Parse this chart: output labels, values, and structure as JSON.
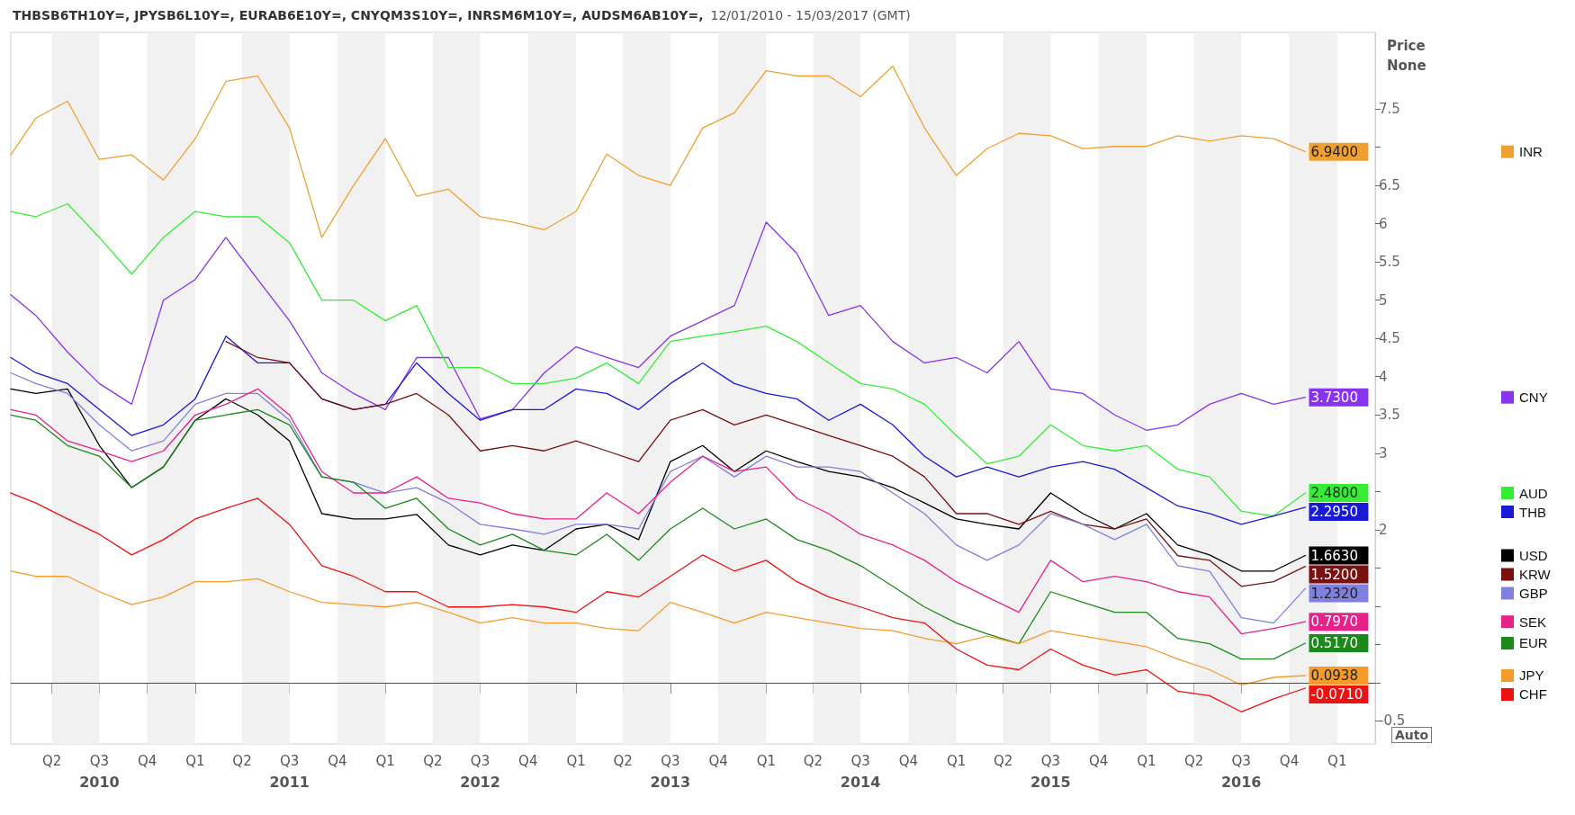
{
  "chart_data": {
    "type": "line",
    "title": "THBSB6TH10Y=, JPYSB6L10Y=, EURAB6E10Y=, CNYQM3S10Y=, INRSM6M10Y=, AUDSM6AB10Y=,",
    "subtitle": "12/01/2010 - 15/03/2017 (GMT)",
    "ylabel": "Price\nNone",
    "annotations": [
      "Auto"
    ],
    "x": [
      "2010-01-12",
      "2010-03",
      "2010-05",
      "2010-07",
      "2010-09",
      "2010-11",
      "2011-01",
      "2011-03",
      "2011-05",
      "2011-07",
      "2011-09",
      "2011-11",
      "2012-01",
      "2012-03",
      "2012-05",
      "2012-07",
      "2012-09",
      "2012-11",
      "2013-01",
      "2013-03",
      "2013-05",
      "2013-07",
      "2013-09",
      "2013-11",
      "2014-01",
      "2014-03",
      "2014-05",
      "2014-07",
      "2014-09",
      "2014-11",
      "2015-01",
      "2015-03",
      "2015-05",
      "2015-07",
      "2015-09",
      "2015-11",
      "2016-01",
      "2016-03",
      "2016-05",
      "2016-07",
      "2016-09",
      "2016-11"
    ],
    "series": [
      {
        "name": "INR",
        "color": "#f0a030",
        "values": [
          6.9,
          7.38,
          7.6,
          6.84,
          6.9,
          6.57,
          7.11,
          7.86,
          7.93,
          7.25,
          5.82,
          6.5,
          7.11,
          6.36,
          6.45,
          6.09,
          6.02,
          5.92,
          6.16,
          6.91,
          6.63,
          6.5,
          7.25,
          7.45,
          8.0,
          7.93,
          7.93,
          7.66,
          8.06,
          7.25,
          6.63,
          6.98,
          7.18,
          7.15,
          6.98,
          7.01,
          7.01,
          7.15,
          7.08,
          7.15,
          7.11,
          6.94
        ],
        "value_labels": [
          null,
          null,
          null,
          null,
          null,
          null,
          null,
          null,
          null,
          null,
          null,
          null,
          null,
          null,
          null,
          null,
          null,
          null,
          null,
          null,
          null,
          null,
          null,
          null,
          null,
          null,
          null,
          null,
          null,
          null,
          null,
          null,
          null,
          null,
          null,
          null,
          null,
          null,
          null,
          null,
          null,
          "6.9400"
        ]
      },
      {
        "name": "CNY",
        "color": "#8833ee",
        "values": [
          5.07,
          4.8,
          4.32,
          3.91,
          3.64,
          5.0,
          5.27,
          5.82,
          5.27,
          4.73,
          4.05,
          3.78,
          3.57,
          4.25,
          4.25,
          3.45,
          3.57,
          4.05,
          4.39,
          4.25,
          4.12,
          4.53,
          4.73,
          4.93,
          6.02,
          5.61,
          4.8,
          4.93,
          4.46,
          4.18,
          4.25,
          4.05,
          4.46,
          3.84,
          3.78,
          3.5,
          3.3,
          3.37,
          3.64,
          3.78,
          3.64,
          3.73
        ],
        "value_labels": [
          null,
          null,
          null,
          null,
          null,
          null,
          null,
          null,
          null,
          null,
          null,
          null,
          null,
          null,
          null,
          null,
          null,
          null,
          null,
          null,
          null,
          null,
          null,
          null,
          null,
          null,
          null,
          null,
          null,
          null,
          null,
          null,
          null,
          null,
          null,
          null,
          null,
          null,
          null,
          null,
          null,
          "3.7300"
        ]
      },
      {
        "name": "AUD",
        "color": "#33ee33",
        "values": [
          6.16,
          6.09,
          6.26,
          5.82,
          5.34,
          5.82,
          6.16,
          6.09,
          6.09,
          5.75,
          5.0,
          5.0,
          4.73,
          4.93,
          4.12,
          4.12,
          3.91,
          3.91,
          3.98,
          4.18,
          3.91,
          4.46,
          4.53,
          4.59,
          4.66,
          4.46,
          4.18,
          3.91,
          3.84,
          3.64,
          3.23,
          2.86,
          2.96,
          3.37,
          3.1,
          3.03,
          3.1,
          2.79,
          2.69,
          2.24,
          2.18,
          2.48
        ],
        "value_labels": [
          null,
          null,
          null,
          null,
          null,
          null,
          null,
          null,
          null,
          null,
          null,
          null,
          null,
          null,
          null,
          null,
          null,
          null,
          null,
          null,
          null,
          null,
          null,
          null,
          null,
          null,
          null,
          null,
          null,
          null,
          null,
          null,
          null,
          null,
          null,
          null,
          null,
          null,
          null,
          null,
          null,
          "2.4800"
        ]
      },
      {
        "name": "THB",
        "color": "#1a1ad6",
        "values": [
          4.25,
          4.05,
          3.91,
          3.57,
          3.23,
          3.37,
          3.71,
          4.53,
          4.18,
          4.18,
          3.71,
          3.57,
          3.64,
          4.18,
          3.78,
          3.43,
          3.57,
          3.57,
          3.84,
          3.78,
          3.57,
          3.91,
          4.18,
          3.91,
          3.78,
          3.71,
          3.43,
          3.64,
          3.37,
          2.96,
          2.69,
          2.82,
          2.69,
          2.82,
          2.89,
          2.79,
          2.55,
          2.31,
          2.21,
          2.07,
          2.18,
          2.295
        ],
        "value_labels": [
          null,
          null,
          null,
          null,
          null,
          null,
          null,
          null,
          null,
          null,
          null,
          null,
          null,
          null,
          null,
          null,
          null,
          null,
          null,
          null,
          null,
          null,
          null,
          null,
          null,
          null,
          null,
          null,
          null,
          null,
          null,
          null,
          null,
          null,
          null,
          null,
          null,
          null,
          null,
          null,
          null,
          "2.2950"
        ]
      },
      {
        "name": "USD",
        "color": "#000000",
        "values": [
          3.84,
          3.78,
          3.84,
          3.1,
          2.55,
          2.82,
          3.43,
          3.71,
          3.5,
          3.16,
          2.21,
          2.14,
          2.14,
          2.2,
          1.8,
          1.67,
          1.8,
          1.73,
          2.01,
          2.07,
          1.87,
          2.89,
          3.1,
          2.76,
          3.03,
          2.89,
          2.76,
          2.69,
          2.55,
          2.35,
          2.14,
          2.07,
          2.01,
          2.48,
          2.21,
          2.01,
          2.21,
          1.8,
          1.67,
          1.46,
          1.46,
          1.663
        ],
        "value_labels": [
          null,
          null,
          null,
          null,
          null,
          null,
          null,
          null,
          null,
          null,
          null,
          null,
          null,
          null,
          null,
          null,
          null,
          null,
          null,
          null,
          null,
          null,
          null,
          null,
          null,
          null,
          null,
          null,
          null,
          null,
          null,
          null,
          null,
          null,
          null,
          null,
          null,
          null,
          null,
          null,
          null,
          "1.6630"
        ]
      },
      {
        "name": "KRW",
        "color": "#7a1010",
        "values": [
          null,
          null,
          null,
          null,
          null,
          null,
          null,
          4.46,
          4.25,
          4.18,
          3.71,
          3.57,
          3.64,
          3.78,
          3.5,
          3.03,
          3.1,
          3.03,
          3.16,
          3.03,
          2.89,
          3.43,
          3.57,
          3.37,
          3.5,
          3.37,
          3.23,
          3.1,
          2.96,
          2.69,
          2.21,
          2.21,
          2.07,
          2.24,
          2.07,
          2.01,
          2.14,
          1.66,
          1.6,
          1.26,
          1.32,
          1.52
        ],
        "value_labels": [
          null,
          null,
          null,
          null,
          null,
          null,
          null,
          null,
          null,
          null,
          null,
          null,
          null,
          null,
          null,
          null,
          null,
          null,
          null,
          null,
          null,
          null,
          null,
          null,
          null,
          null,
          null,
          null,
          null,
          null,
          null,
          null,
          null,
          null,
          null,
          null,
          null,
          null,
          null,
          null,
          null,
          "1.5200"
        ]
      },
      {
        "name": "GBP",
        "color": "#8080e0",
        "values": [
          4.05,
          3.91,
          3.78,
          3.37,
          3.03,
          3.16,
          3.64,
          3.78,
          3.78,
          3.43,
          2.69,
          2.62,
          2.48,
          2.55,
          2.35,
          2.07,
          2.01,
          1.94,
          2.07,
          2.07,
          2.01,
          2.76,
          2.96,
          2.69,
          2.96,
          2.82,
          2.82,
          2.76,
          2.48,
          2.21,
          1.8,
          1.6,
          1.8,
          2.21,
          2.07,
          1.87,
          2.07,
          1.53,
          1.46,
          0.85,
          0.78,
          1.232
        ],
        "value_labels": [
          null,
          null,
          null,
          null,
          null,
          null,
          null,
          null,
          null,
          null,
          null,
          null,
          null,
          null,
          null,
          null,
          null,
          null,
          null,
          null,
          null,
          null,
          null,
          null,
          null,
          null,
          null,
          null,
          null,
          null,
          null,
          null,
          null,
          null,
          null,
          null,
          null,
          null,
          null,
          null,
          null,
          "1.2320"
        ]
      },
      {
        "name": "SEK",
        "color": "#e8208a",
        "values": [
          3.57,
          3.5,
          3.16,
          3.03,
          2.89,
          3.03,
          3.5,
          3.64,
          3.84,
          3.5,
          2.76,
          2.48,
          2.48,
          2.69,
          2.41,
          2.35,
          2.21,
          2.14,
          2.14,
          2.48,
          2.21,
          2.62,
          2.96,
          2.76,
          2.82,
          2.41,
          2.21,
          1.94,
          1.8,
          1.6,
          1.32,
          1.12,
          0.92,
          1.6,
          1.32,
          1.39,
          1.32,
          1.19,
          1.12,
          0.64,
          0.71,
          0.797
        ],
        "value_labels": [
          null,
          null,
          null,
          null,
          null,
          null,
          null,
          null,
          null,
          null,
          null,
          null,
          null,
          null,
          null,
          null,
          null,
          null,
          null,
          null,
          null,
          null,
          null,
          null,
          null,
          null,
          null,
          null,
          null,
          null,
          null,
          null,
          null,
          null,
          null,
          null,
          null,
          null,
          null,
          null,
          null,
          "0.7970"
        ]
      },
      {
        "name": "EUR",
        "color": "#1a8a1a",
        "values": [
          3.5,
          3.43,
          3.1,
          2.96,
          2.55,
          2.82,
          3.43,
          3.5,
          3.57,
          3.37,
          2.69,
          2.62,
          2.28,
          2.41,
          2.01,
          1.8,
          1.94,
          1.73,
          1.67,
          1.94,
          1.6,
          2.01,
          2.28,
          2.01,
          2.14,
          1.87,
          1.73,
          1.53,
          1.26,
          0.99,
          0.78,
          0.64,
          0.51,
          1.19,
          1.05,
          0.92,
          0.92,
          0.58,
          0.51,
          0.31,
          0.31,
          0.517
        ],
        "value_labels": [
          null,
          null,
          null,
          null,
          null,
          null,
          null,
          null,
          null,
          null,
          null,
          null,
          null,
          null,
          null,
          null,
          null,
          null,
          null,
          null,
          null,
          null,
          null,
          null,
          null,
          null,
          null,
          null,
          null,
          null,
          null,
          null,
          null,
          null,
          null,
          null,
          null,
          null,
          null,
          null,
          null,
          "0.5170"
        ]
      },
      {
        "name": "JPY",
        "color": "#f59b2a",
        "values": [
          1.46,
          1.39,
          1.39,
          1.19,
          1.02,
          1.12,
          1.32,
          1.32,
          1.36,
          1.19,
          1.05,
          1.02,
          0.99,
          1.05,
          0.92,
          0.78,
          0.85,
          0.78,
          0.78,
          0.71,
          0.68,
          1.05,
          0.92,
          0.78,
          0.92,
          0.85,
          0.78,
          0.71,
          0.68,
          0.58,
          0.51,
          0.61,
          0.51,
          0.68,
          0.61,
          0.54,
          0.47,
          0.31,
          0.17,
          -0.03,
          0.07,
          0.0938
        ],
        "value_labels": [
          null,
          null,
          null,
          null,
          null,
          null,
          null,
          null,
          null,
          null,
          null,
          null,
          null,
          null,
          null,
          null,
          null,
          null,
          null,
          null,
          null,
          null,
          null,
          null,
          null,
          null,
          null,
          null,
          null,
          null,
          null,
          null,
          null,
          null,
          null,
          null,
          null,
          null,
          null,
          null,
          null,
          "0.0938"
        ]
      },
      {
        "name": "CHF",
        "color": "#ee1111",
        "values": [
          2.48,
          2.35,
          2.14,
          1.94,
          1.67,
          1.87,
          2.14,
          2.28,
          2.41,
          2.07,
          1.53,
          1.39,
          1.19,
          1.19,
          0.99,
          0.99,
          1.02,
          0.99,
          0.92,
          1.19,
          1.12,
          1.39,
          1.67,
          1.46,
          1.6,
          1.32,
          1.12,
          0.99,
          0.85,
          0.78,
          0.44,
          0.23,
          0.17,
          0.44,
          0.23,
          0.1,
          0.17,
          -0.11,
          -0.17,
          -0.38,
          -0.21,
          -0.071
        ],
        "value_labels": [
          null,
          null,
          null,
          null,
          null,
          null,
          null,
          null,
          null,
          null,
          null,
          null,
          null,
          null,
          null,
          null,
          null,
          null,
          null,
          null,
          null,
          null,
          null,
          null,
          null,
          null,
          null,
          null,
          null,
          null,
          null,
          null,
          null,
          null,
          null,
          null,
          null,
          null,
          null,
          null,
          null,
          "-0.0710"
        ]
      }
    ],
    "xlim": [
      "2010-01-12",
      "2017-03-15"
    ],
    "xticks": [
      {
        "value": "2010-04-01",
        "label": "Q2"
      },
      {
        "value": "2010-07-01",
        "label": "Q3\n2010"
      },
      {
        "value": "2010-10-01",
        "label": "Q4"
      },
      {
        "value": "2011-01-01",
        "label": "Q1"
      },
      {
        "value": "2011-04-01",
        "label": "Q2"
      },
      {
        "value": "2011-07-01",
        "label": "Q3\n2011"
      },
      {
        "value": "2011-10-01",
        "label": "Q4"
      },
      {
        "value": "2012-01-01",
        "label": "Q1"
      },
      {
        "value": "2012-04-01",
        "label": "Q2"
      },
      {
        "value": "2012-07-01",
        "label": "Q3\n2012"
      },
      {
        "value": "2012-10-01",
        "label": "Q4"
      },
      {
        "value": "2013-01-01",
        "label": "Q1"
      },
      {
        "value": "2013-04-01",
        "label": "Q2"
      },
      {
        "value": "2013-07-01",
        "label": "Q3\n2013"
      },
      {
        "value": "2013-10-01",
        "label": "Q4"
      },
      {
        "value": "2014-01-01",
        "label": "Q1"
      },
      {
        "value": "2014-04-01",
        "label": "Q2"
      },
      {
        "value": "2014-07-01",
        "label": "Q3\n2014"
      },
      {
        "value": "2014-10-01",
        "label": "Q4"
      },
      {
        "value": "2015-01-01",
        "label": "Q1"
      },
      {
        "value": "2015-04-01",
        "label": "Q2"
      },
      {
        "value": "2015-07-01",
        "label": "Q3\n2015"
      },
      {
        "value": "2015-10-01",
        "label": "Q4"
      },
      {
        "value": "2016-01-01",
        "label": "Q1"
      },
      {
        "value": "2016-04-01",
        "label": "Q2"
      },
      {
        "value": "2016-07-01",
        "label": "Q3\n2016"
      },
      {
        "value": "2016-10-01",
        "label": "Q4"
      },
      {
        "value": "2017-01-01",
        "label": "Q1"
      }
    ],
    "ylim": [
      -0.8,
      8.5
    ],
    "yticks": [
      -0.5,
      {
        "value": 0,
        "label": null
      },
      {
        "value": 0.5,
        "label": null
      },
      {
        "value": 1,
        "label": null
      },
      {
        "value": 1.5,
        "label": null
      },
      2,
      {
        "value": 2.5,
        "label": null
      },
      3,
      3.5,
      4,
      4.5,
      5,
      5.5,
      6,
      6.5,
      {
        "value": 7,
        "label": null
      },
      7.5
    ],
    "bands": [
      {
        "axis": "x",
        "from": "2010-04-01",
        "to": "2010-07-01",
        "color": "#f1f1f1"
      },
      {
        "axis": "x",
        "from": "2010-10-01",
        "to": "2011-01-01",
        "color": "#f1f1f1"
      },
      {
        "axis": "x",
        "from": "2011-04-01",
        "to": "2011-07-01",
        "color": "#f1f1f1"
      },
      {
        "axis": "x",
        "from": "2011-10-01",
        "to": "2012-01-01",
        "color": "#f1f1f1"
      },
      {
        "axis": "x",
        "from": "2012-04-01",
        "to": "2012-07-01",
        "color": "#f1f1f1"
      },
      {
        "axis": "x",
        "from": "2012-10-01",
        "to": "2013-01-01",
        "color": "#f1f1f1"
      },
      {
        "axis": "x",
        "from": "2013-04-01",
        "to": "2013-07-01",
        "color": "#f1f1f1"
      },
      {
        "axis": "x",
        "from": "2013-10-01",
        "to": "2014-01-01",
        "color": "#f1f1f1"
      },
      {
        "axis": "x",
        "from": "2014-04-01",
        "to": "2014-07-01",
        "color": "#f1f1f1"
      },
      {
        "axis": "x",
        "from": "2014-10-01",
        "to": "2015-01-01",
        "color": "#f1f1f1"
      },
      {
        "axis": "x",
        "from": "2015-04-01",
        "to": "2015-07-01",
        "color": "#f1f1f1"
      },
      {
        "axis": "x",
        "from": "2015-10-01",
        "to": "2016-01-01",
        "color": "#f1f1f1"
      },
      {
        "axis": "x",
        "from": "2016-04-01",
        "to": "2016-07-01",
        "color": "#f1f1f1"
      },
      {
        "axis": "x",
        "from": "2016-10-01",
        "to": "2017-01-01",
        "color": "#f1f1f1"
      }
    ],
    "ref_lines": [
      {
        "axis": "y",
        "value": 0,
        "color": "#ff0000"
      }
    ],
    "marker": "none",
    "line_style": "solid",
    "grid": false,
    "legend": "right"
  }
}
